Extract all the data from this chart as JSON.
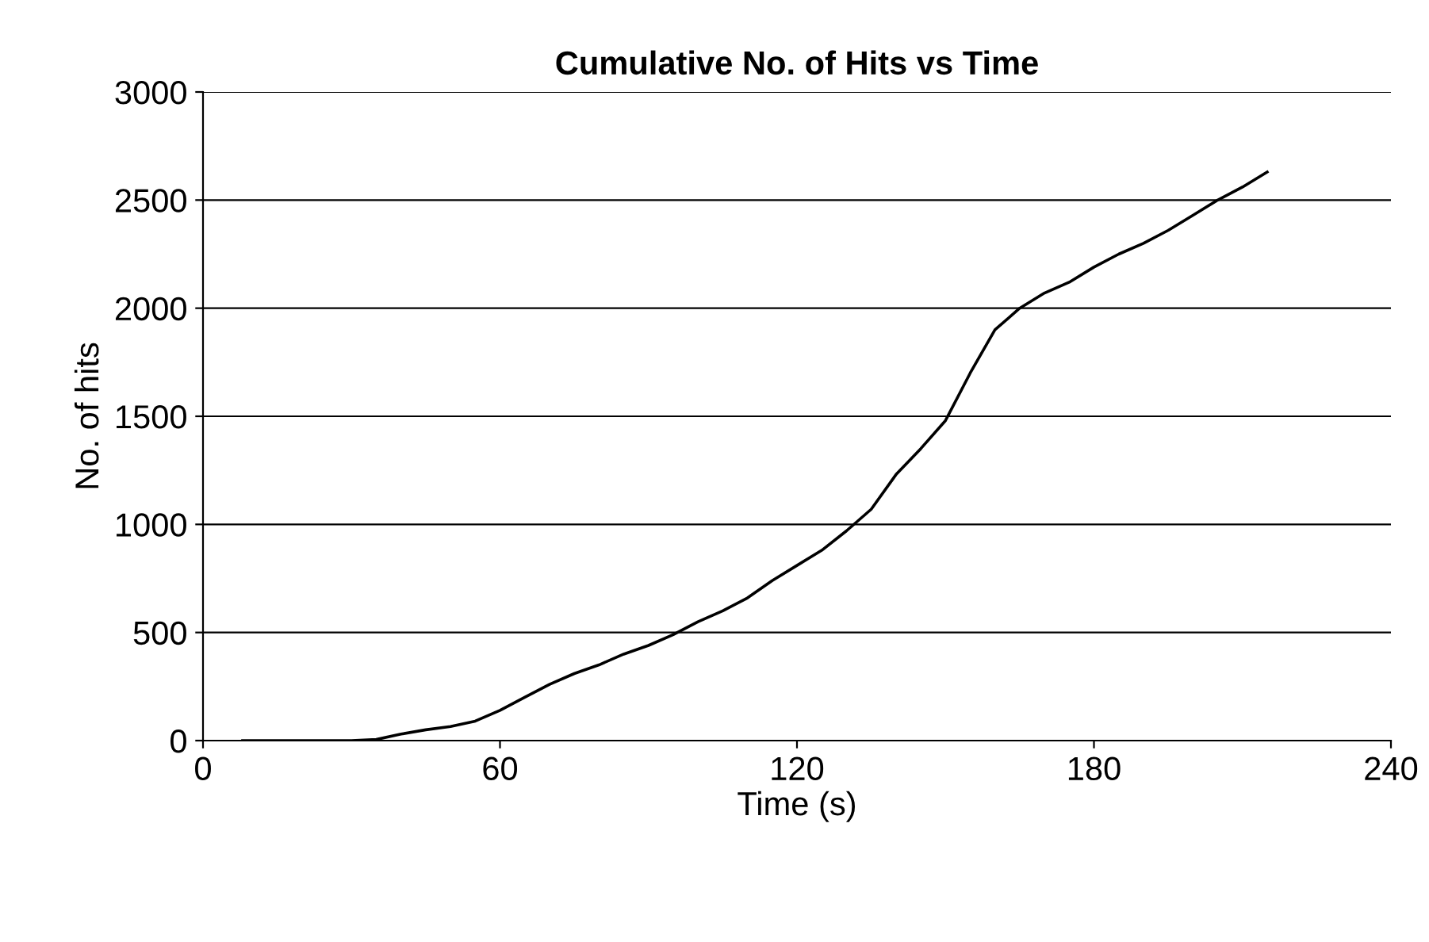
{
  "chart_data": {
    "type": "line",
    "title": "Cumulative No. of Hits vs Time",
    "xlabel": "Time (s)",
    "ylabel": "No. of hits",
    "x": [
      8,
      30,
      35,
      40,
      45,
      50,
      55,
      60,
      65,
      70,
      75,
      80,
      85,
      90,
      95,
      100,
      105,
      110,
      115,
      120,
      125,
      130,
      135,
      140,
      145,
      150,
      155,
      160,
      165,
      170,
      175,
      180,
      185,
      190,
      195,
      200,
      205,
      210,
      215
    ],
    "series": [
      {
        "color": "#000000",
        "values": [
          0,
          0,
          5,
          30,
          50,
          65,
          90,
          140,
          200,
          260,
          310,
          350,
          400,
          440,
          490,
          550,
          600,
          660,
          740,
          810,
          880,
          970,
          1070,
          1230,
          1350,
          1480,
          1700,
          1900,
          2000,
          2070,
          2120,
          2190,
          2250,
          2300,
          2360,
          2430,
          2500,
          2560,
          2630
        ]
      }
    ],
    "xlim": [
      0,
      240
    ],
    "xticks": [
      0,
      60,
      120,
      180,
      240
    ],
    "ylim": [
      0,
      3000
    ],
    "yticks": [
      0,
      500,
      1000,
      1500,
      2000,
      2500,
      3000
    ],
    "grid": "y",
    "marker": "none",
    "line_style": "solid",
    "legend": false
  }
}
